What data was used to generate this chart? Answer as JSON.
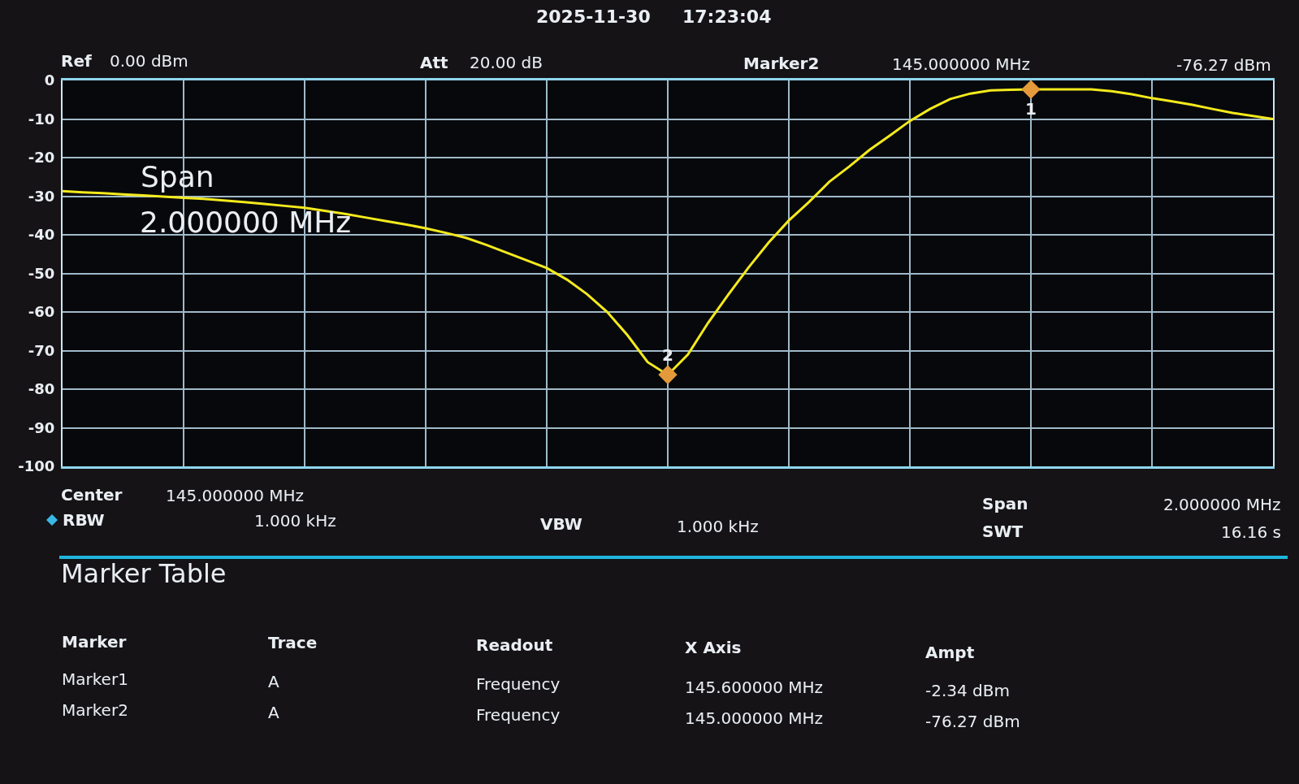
{
  "chart_data": {
    "type": "line",
    "annotations": [
      "2025-11-30",
      "17:23:04",
      "Ref",
      "0.00 dBm",
      "Att",
      "20.00 dB",
      "Marker2",
      "145.000000 MHz",
      "-76.27 dBm",
      "Span",
      "2.000000 MHz",
      "Center",
      "145.000000 MHz",
      "RBW",
      "1.000 kHz",
      "VBW",
      "1.000 kHz",
      "Span",
      "2.000000 MHz",
      "SWT",
      "16.16 s",
      "Marker Table",
      "Marker",
      "Trace",
      "Readout",
      "X Axis",
      "Ampt",
      "Marker1",
      "A",
      "Frequency",
      "145.600000 MHz",
      "-2.34 dBm",
      "Marker2",
      "A",
      "Frequency",
      "145.000000 MHz",
      "-76.27 dBm"
    ],
    "categories": [
      null,
      null,
      null,
      null,
      null,
      null,
      null,
      null,
      null,
      null,
      null,
      null,
      null,
      null,
      null,
      null,
      null,
      null,
      null,
      null,
      null,
      null,
      null,
      null,
      null,
      null,
      null,
      null,
      null,
      null,
      null,
      null,
      null,
      null,
      null,
      null,
      null,
      null,
      null,
      null,
      null,
      null,
      null,
      null,
      null,
      null,
      null,
      null,
      null,
      null,
      null,
      null,
      null,
      null,
      null,
      null,
      null,
      null,
      null,
      null,
      null
    ],
    "series": [
      {
        "color": "#f4ea1c",
        "marker": "none",
        "line_style": "solid",
        "values": [
          -28.7,
          -29.0,
          -29.2,
          -29.5,
          -29.8,
          -30.1,
          -30.4,
          -30.7,
          -31.1,
          -31.5,
          -32.0,
          -32.5,
          -33.0,
          -33.8,
          -34.6,
          -35.5,
          -36.4,
          -37.3,
          -38.3,
          -39.5,
          -40.8,
          -42.6,
          -44.6,
          -46.6,
          -48.6,
          -51.6,
          -55.4,
          -60.0,
          -66.0,
          -73.0,
          -76.3,
          -71.0,
          -62.8,
          -55.5,
          -48.5,
          -42.0,
          -36.3,
          -31.5,
          -26.3,
          -22.3,
          -18.0,
          -14.3,
          -10.5,
          -7.4,
          -4.8,
          -3.4,
          -2.6,
          -2.4,
          -2.3,
          -2.3,
          -2.3,
          -2.3,
          -2.8,
          -3.6,
          -4.6,
          -5.4,
          -6.3,
          -7.4,
          -8.4,
          -9.2,
          -10.0
        ]
      },
      {
        "type": "scatter",
        "name": "1",
        "color": "#e49a3a",
        "marker": "diamond",
        "values": [
          null,
          null,
          null,
          null,
          null,
          null,
          null,
          null,
          null,
          null,
          null,
          null,
          null,
          null,
          null,
          null,
          null,
          null,
          null,
          null,
          null,
          null,
          null,
          null,
          null,
          null,
          null,
          null,
          null,
          null,
          null,
          null,
          null,
          null,
          null,
          null,
          null,
          null,
          null,
          null,
          null,
          null,
          null,
          null,
          null,
          null,
          null,
          null,
          -2.34,
          null,
          null,
          null,
          null,
          null,
          null,
          null,
          null,
          null,
          null,
          null,
          null
        ]
      },
      {
        "type": "scatter",
        "name": "2",
        "color": "#e49a3a",
        "marker": "diamond",
        "values": [
          null,
          null,
          null,
          null,
          null,
          null,
          null,
          null,
          null,
          null,
          null,
          null,
          null,
          null,
          null,
          null,
          null,
          null,
          null,
          null,
          null,
          null,
          null,
          null,
          null,
          null,
          null,
          null,
          null,
          null,
          -76.27,
          null,
          null,
          null,
          null,
          null,
          null,
          null,
          null,
          null,
          null,
          null,
          null,
          null,
          null,
          null,
          null,
          null,
          null,
          null,
          null,
          null,
          null,
          null,
          null,
          null,
          null,
          null,
          null,
          null,
          null
        ]
      }
    ],
    "ylim": [
      -100,
      0
    ],
    "yticks": [
      0,
      -10,
      -20,
      -30,
      -40,
      -50,
      -60,
      -70,
      -80,
      -90,
      -100
    ],
    "tick_labels": "y",
    "grid": true,
    "legend": false
  }
}
